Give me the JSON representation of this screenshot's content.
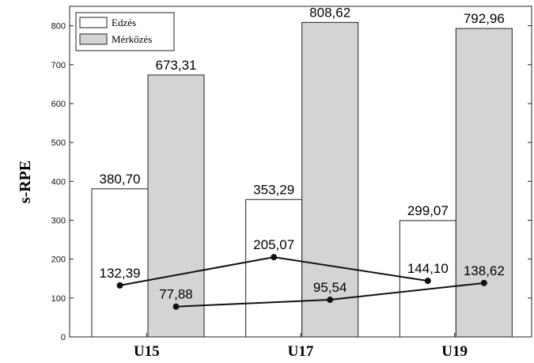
{
  "chart_data": {
    "type": "bar",
    "ylabel": "s-RPE",
    "categories": [
      "U15",
      "U17",
      "U19"
    ],
    "ylim": [
      0,
      850
    ],
    "yticks": [
      0,
      100,
      200,
      300,
      400,
      500,
      600,
      700,
      800
    ],
    "legend_position": "top-left",
    "grid": false,
    "series": [
      {
        "name": "Edzés",
        "values": [
          380.7,
          353.29,
          299.07
        ],
        "labels": [
          "380,70",
          "353,29",
          "299,07"
        ],
        "color": "#ffffff"
      },
      {
        "name": "Mérkőzés",
        "values": [
          673.31,
          808.62,
          792.96
        ],
        "labels": [
          "673,31",
          "808,62",
          "792,96"
        ],
        "color": "#d4d4d4"
      }
    ],
    "lines": [
      {
        "type": "line",
        "values": [
          132.39,
          205.07,
          144.1
        ],
        "labels": [
          "132,39",
          "205,07",
          "144,10"
        ],
        "anchor": "Edzés"
      },
      {
        "type": "line",
        "values": [
          77.88,
          95.54,
          138.62
        ],
        "labels": [
          "77,88",
          "95,54",
          "138,62"
        ],
        "anchor": "Mérkőzés"
      }
    ]
  }
}
